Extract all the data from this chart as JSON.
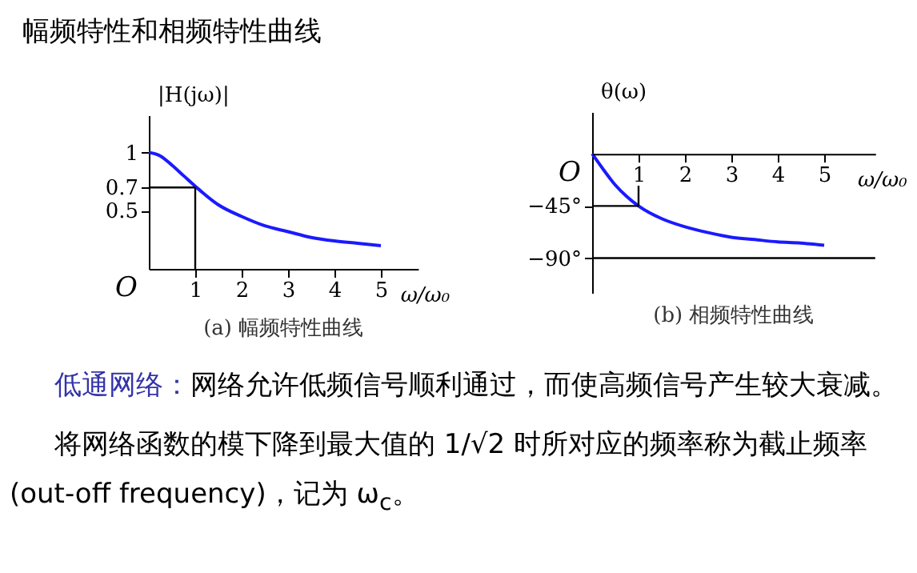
{
  "chart_data": [
    {
      "type": "line",
      "title": "(a) 幅频特性曲线",
      "xlabel": "ω/ω₀",
      "ylabel": "|H(jω)|",
      "x": [
        0,
        0.25,
        0.5,
        0.75,
        1,
        1.5,
        2,
        2.5,
        3,
        3.5,
        4,
        4.5,
        5
      ],
      "series": [
        {
          "color": "#1a1aff",
          "values": [
            1,
            0.97,
            0.89,
            0.8,
            0.71,
            0.55,
            0.45,
            0.37,
            0.32,
            0.27,
            0.24,
            0.22,
            0.2
          ]
        }
      ],
      "xlim": [
        0,
        5.8
      ],
      "ylim": [
        0,
        1.32
      ],
      "xticks": [
        1,
        2,
        3,
        4,
        5
      ],
      "yticks": [
        0.5,
        0.7,
        1
      ],
      "ref_lines": [
        {
          "axis": "x",
          "value": 1
        },
        {
          "axis": "y",
          "value": 0.7
        }
      ],
      "annotations": [
        "O"
      ]
    },
    {
      "type": "line",
      "title": "(b) 相频特性曲线",
      "xlabel": "ω/ω₀",
      "ylabel": "θ(ω)",
      "x": [
        0,
        0.25,
        0.5,
        0.75,
        1,
        1.5,
        2,
        2.5,
        3,
        3.5,
        4,
        4.5,
        5
      ],
      "series": [
        {
          "color": "#1a1aff",
          "values": [
            0,
            -14,
            -27,
            -37,
            -45,
            -56,
            -63,
            -68,
            -72,
            -74,
            -76,
            -77,
            -79
          ]
        }
      ],
      "xlim": [
        0,
        6.1
      ],
      "ylim": [
        -120,
        36
      ],
      "xticks": [
        1,
        2,
        3,
        4,
        5
      ],
      "yticks": [
        {
          "value": -90,
          "label": "−90°"
        },
        {
          "value": -45,
          "label": "−45°"
        }
      ],
      "ref_lines": [
        {
          "axis": "x",
          "value": 1
        },
        {
          "axis": "y",
          "value": -45
        },
        {
          "axis": "y",
          "value": -90
        }
      ],
      "annotations": [
        "O"
      ]
    },
    {
      "type": "other",
      "title": "幅频特性和相频特性曲线",
      "annotations": [
        "低通网络：",
        "网络允许低频信号顺利通过，而使高频信号产生较大衰减。",
        "将网络函数的模下降到最大值的 1/√2 时所对应的频率称为截止频率(out-off frequency)，记为 ω$_{c}$。"
      ]
    }
  ]
}
